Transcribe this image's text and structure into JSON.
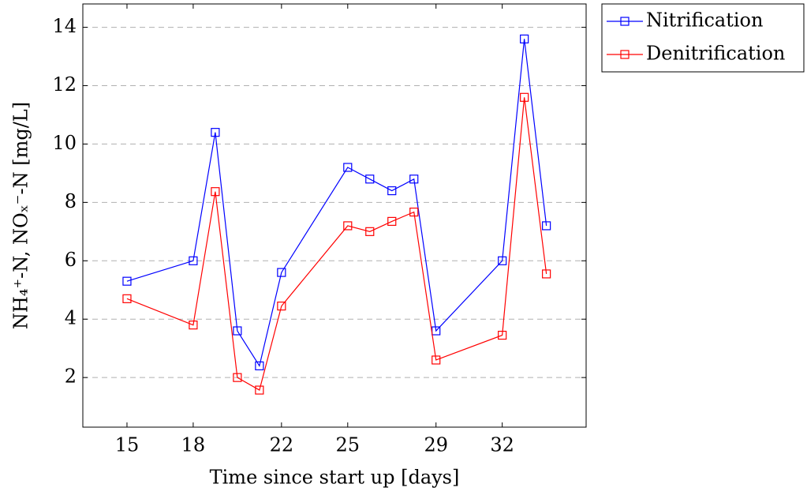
{
  "chart_data": {
    "type": "line",
    "x_label": "Time since start up [days]",
    "y_label": "NH₄⁺-N, NOₓ⁻-N [mg/L]",
    "x": [
      15,
      18,
      19,
      20,
      21,
      22,
      25,
      26,
      27,
      28,
      29,
      32,
      33,
      34
    ],
    "series": [
      {
        "name": "Nitrification",
        "color": "#0000ff",
        "values": [
          5.3,
          6.0,
          10.4,
          3.6,
          2.4,
          5.6,
          9.2,
          8.8,
          8.4,
          8.8,
          3.6,
          6.0,
          13.6,
          7.2
        ]
      },
      {
        "name": "Denitrification",
        "color": "#ff0000",
        "values": [
          4.7,
          3.8,
          8.37,
          2.0,
          1.57,
          4.45,
          7.2,
          7.0,
          7.35,
          7.67,
          2.6,
          3.45,
          11.6,
          5.55
        ]
      }
    ],
    "xlim": [
      13,
      35.8
    ],
    "xticks": [
      15,
      18,
      22,
      25,
      29,
      32
    ],
    "ylim": [
      0.3,
      14.8
    ],
    "yticks": [
      2,
      4,
      6,
      8,
      10,
      12,
      14
    ],
    "grid": true,
    "legend": "outside-top-right"
  }
}
